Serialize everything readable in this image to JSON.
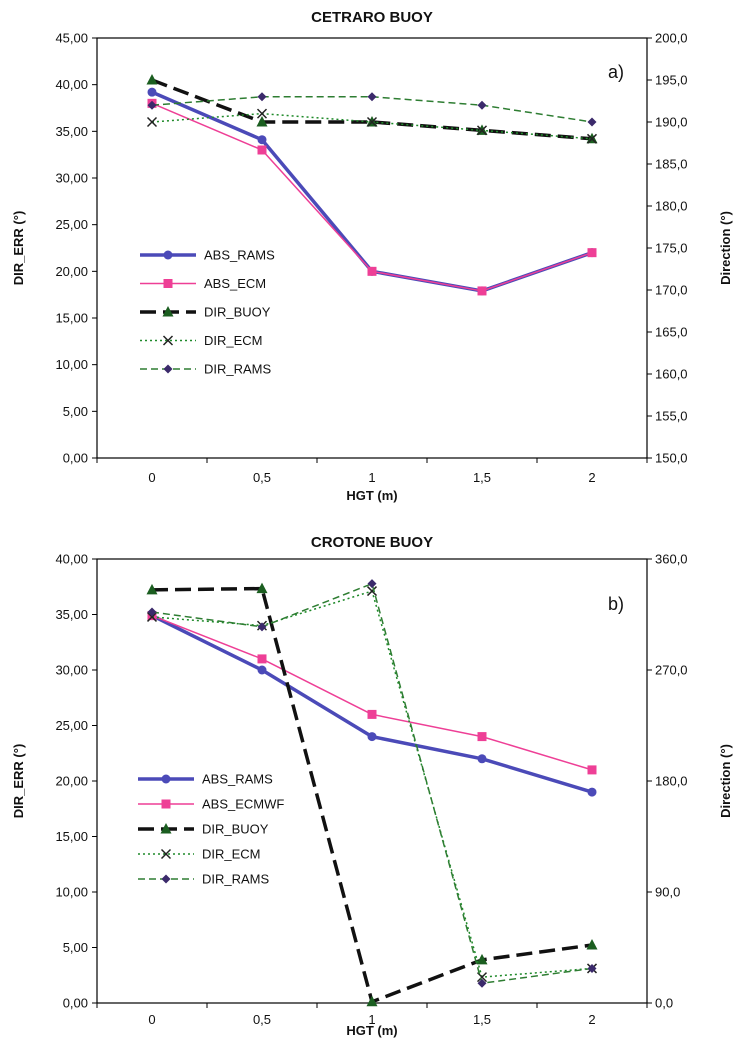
{
  "chart_data": [
    {
      "type": "line",
      "title": "CETRARO BUOY",
      "panel_label": "a)",
      "xlabel": "HGT (m)",
      "ylabel": "DIR_ERR (°)",
      "y2label": "Direction (°)",
      "categories": [
        "0",
        "0,5",
        "1",
        "1,5",
        "2"
      ],
      "x": [
        0,
        0.5,
        1,
        1.5,
        2
      ],
      "ylim": [
        0,
        45
      ],
      "y_ticks": [
        "0,00",
        "5,00",
        "10,00",
        "15,00",
        "20,00",
        "25,00",
        "30,00",
        "35,00",
        "40,00",
        "45,00"
      ],
      "y2lim": [
        150,
        200
      ],
      "y2_ticks": [
        "150,0",
        "155,0",
        "160,0",
        "165,0",
        "170,0",
        "175,0",
        "180,0",
        "185,0",
        "190,0",
        "195,0",
        "200,0"
      ],
      "grid": false,
      "legend": "center-left",
      "series": [
        {
          "name": "ABS_RAMS",
          "axis": "left",
          "values": [
            39.2,
            34.1,
            20.0,
            17.9,
            22.0
          ],
          "color": "#4b4ab8",
          "dash": "",
          "width": 3.5,
          "marker": "circle"
        },
        {
          "name": "ABS_ECM",
          "axis": "left",
          "values": [
            38.0,
            33.0,
            20.0,
            17.9,
            22.0
          ],
          "color": "#ee3f96",
          "dash": "",
          "width": 1.5,
          "marker": "square"
        },
        {
          "name": "DIR_BUOY",
          "axis": "right",
          "values": [
            195.0,
            190.0,
            190.0,
            189.0,
            188.0
          ],
          "color": "#111111",
          "dash": "16,7",
          "width": 3.5,
          "marker": "triangle"
        },
        {
          "name": "DIR_ECM",
          "axis": "right",
          "values": [
            190.0,
            191.0,
            190.0,
            189.0,
            188.0
          ],
          "color": "#1f8a2a",
          "dash": "2,3",
          "width": 1.5,
          "marker": "x"
        },
        {
          "name": "DIR_RAMS",
          "axis": "right",
          "values": [
            192.0,
            193.0,
            193.0,
            192.0,
            190.0
          ],
          "color": "#2e7d32",
          "dash": "7,4",
          "width": 1.5,
          "marker": "diamond"
        }
      ]
    },
    {
      "type": "line",
      "title": "CROTONE BUOY",
      "panel_label": "b)",
      "xlabel": "HGT (m)",
      "ylabel": "DIR_ERR (°)",
      "y2label": "Direction (°)",
      "categories": [
        "0",
        "0,5",
        "1",
        "1,5",
        "2"
      ],
      "x": [
        0,
        0.5,
        1,
        1.5,
        2
      ],
      "ylim": [
        0,
        40
      ],
      "y_ticks": [
        "0,00",
        "5,00",
        "10,00",
        "15,00",
        "20,00",
        "25,00",
        "30,00",
        "35,00",
        "40,00"
      ],
      "y2lim": [
        0,
        360
      ],
      "y2_ticks": [
        "0,0",
        "90,0",
        "180,0",
        "270,0",
        "360,0"
      ],
      "grid": false,
      "legend": "center-left",
      "series": [
        {
          "name": "ABS_RAMS",
          "axis": "left",
          "values": [
            34.9,
            30.0,
            24.0,
            22.0,
            19.0
          ],
          "color": "#4b4ab8",
          "dash": "",
          "width": 3.5,
          "marker": "circle"
        },
        {
          "name": "ABS_ECMWF",
          "axis": "left",
          "values": [
            34.9,
            31.0,
            26.0,
            24.0,
            21.0
          ],
          "color": "#ee3f96",
          "dash": "",
          "width": 1.5,
          "marker": "square"
        },
        {
          "name": "DIR_BUOY",
          "axis": "right",
          "values": [
            335.0,
            336.0,
            1.0,
            35.0,
            47.0
          ],
          "color": "#111111",
          "dash": "16,7",
          "width": 3.5,
          "marker": "triangle"
        },
        {
          "name": "DIR_ECM",
          "axis": "right",
          "values": [
            313.0,
            306.0,
            334.0,
            21.0,
            28.0
          ],
          "color": "#1f8a2a",
          "dash": "2,3",
          "width": 1.5,
          "marker": "x"
        },
        {
          "name": "DIR_RAMS",
          "axis": "right",
          "values": [
            317.0,
            305.0,
            340.0,
            16.0,
            28.0
          ],
          "color": "#2e7d32",
          "dash": "7,4",
          "width": 1.5,
          "marker": "diamond"
        }
      ]
    }
  ]
}
